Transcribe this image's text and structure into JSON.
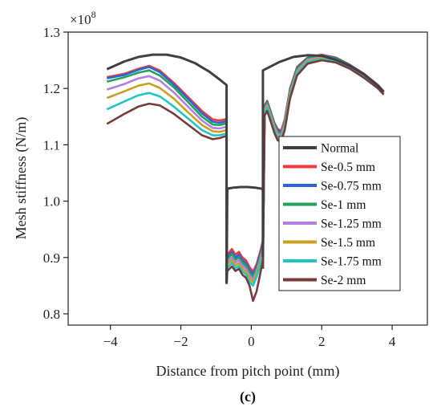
{
  "chart_data": {
    "type": "line",
    "xlabel": "Distance from  pitch point (mm)",
    "ylabel": "Mesh stiffness (N/m)",
    "y_multiplier": "×10",
    "y_multiplier_exp": "8",
    "panel_label": "(c)",
    "xlim": [
      -5.2,
      5.0
    ],
    "ylim": [
      0.78,
      1.3
    ],
    "xticks": [
      -4,
      -2,
      0,
      2,
      4
    ],
    "xtick_labels": [
      "−4",
      "−2",
      "0",
      "2",
      "4"
    ],
    "yticks": [
      0.8,
      0.9,
      1.0,
      1.1,
      1.2,
      1.3
    ],
    "ytick_labels": [
      "0.8",
      "0.9",
      "1.0",
      "1.1",
      "1.2",
      "1.3"
    ],
    "grid": false,
    "legend_position": "right-center",
    "legend": [
      "Normal",
      "Se-0.5 mm",
      "Se-0.75 mm",
      "Se-1 mm",
      "Se-1.25 mm",
      "Se-1.5 mm",
      "Se-1.75 mm",
      "Se-2 mm"
    ],
    "series": [
      {
        "name": "Normal",
        "color": "#404040",
        "segments": [
          {
            "x": [
              -4.1,
              -3.6,
              -3.2,
              -2.8,
              -2.4,
              -2.0,
              -1.6,
              -1.2,
              -0.9,
              -0.7,
              -0.7
            ],
            "y": [
              1.234,
              1.248,
              1.256,
              1.26,
              1.26,
              1.255,
              1.245,
              1.23,
              1.216,
              1.206,
              0.855
            ]
          },
          {
            "x": [
              -0.7,
              -0.68,
              -0.5,
              -0.3,
              -0.1,
              0.1,
              0.3,
              0.33,
              0.33
            ],
            "y": [
              0.855,
              1.022,
              1.024,
              1.025,
              1.025,
              1.024,
              1.022,
              1.02,
              0.9
            ]
          },
          {
            "x": [
              0.33,
              0.33,
              0.8,
              1.2,
              1.6,
              2.0,
              2.4,
              2.8,
              3.2,
              3.6,
              3.76
            ],
            "y": [
              0.9,
              1.232,
              1.247,
              1.256,
              1.259,
              1.258,
              1.251,
              1.24,
              1.225,
              1.205,
              1.194
            ]
          }
        ]
      },
      {
        "name": "Se-0.5 mm",
        "color": "#ee3a3a",
        "segments": [
          {
            "x": [
              -4.1,
              -3.6,
              -3.2,
              -2.9,
              -2.6,
              -2.2,
              -1.8,
              -1.4,
              -1.1,
              -0.9,
              -0.7,
              -0.7
            ],
            "y": [
              1.22,
              1.226,
              1.235,
              1.24,
              1.232,
              1.21,
              1.185,
              1.16,
              1.145,
              1.143,
              1.146,
              0.86
            ]
          },
          {
            "x": [
              -0.7,
              -0.68,
              -0.55,
              -0.45,
              -0.35,
              -0.25,
              -0.15,
              -0.05,
              0.05,
              0.15,
              0.25,
              0.33,
              0.33
            ],
            "y": [
              0.86,
              0.905,
              0.915,
              0.905,
              0.91,
              0.9,
              0.895,
              0.883,
              0.875,
              0.888,
              0.91,
              0.93,
              0.893
            ]
          },
          {
            "x": [
              0.33,
              0.38,
              0.45,
              0.55,
              0.65,
              0.75,
              0.85,
              0.95,
              1.1,
              1.3,
              1.6,
              2.0,
              2.4,
              2.8,
              3.2,
              3.6,
              3.76
            ],
            "y": [
              0.893,
              1.17,
              1.178,
              1.16,
              1.14,
              1.128,
              1.125,
              1.145,
              1.2,
              1.238,
              1.255,
              1.26,
              1.255,
              1.242,
              1.226,
              1.206,
              1.195
            ]
          }
        ]
      },
      {
        "name": "Se-0.75 mm",
        "color": "#2a64d8",
        "segments": [
          {
            "x": [
              -4.1,
              -3.6,
              -3.2,
              -2.9,
              -2.6,
              -2.2,
              -1.8,
              -1.4,
              -1.1,
              -0.9,
              -0.7,
              -0.7
            ],
            "y": [
              1.218,
              1.224,
              1.233,
              1.238,
              1.229,
              1.207,
              1.182,
              1.156,
              1.141,
              1.139,
              1.142,
              0.858
            ]
          },
          {
            "x": [
              -0.7,
              -0.68,
              -0.55,
              -0.45,
              -0.35,
              -0.25,
              -0.15,
              -0.05,
              0.05,
              0.15,
              0.25,
              0.33,
              0.33
            ],
            "y": [
              0.858,
              0.9,
              0.91,
              0.9,
              0.905,
              0.895,
              0.89,
              0.878,
              0.87,
              0.884,
              0.905,
              0.925,
              0.89
            ]
          },
          {
            "x": [
              0.33,
              0.38,
              0.45,
              0.55,
              0.65,
              0.75,
              0.85,
              0.95,
              1.1,
              1.3,
              1.6,
              2.0,
              2.4,
              2.8,
              3.2,
              3.6,
              3.76
            ],
            "y": [
              0.89,
              1.168,
              1.176,
              1.158,
              1.138,
              1.125,
              1.122,
              1.142,
              1.197,
              1.236,
              1.254,
              1.259,
              1.254,
              1.241,
              1.225,
              1.205,
              1.194
            ]
          }
        ]
      },
      {
        "name": "Se-1 mm",
        "color": "#22a25a",
        "segments": [
          {
            "x": [
              -4.1,
              -3.6,
              -3.2,
              -2.9,
              -2.6,
              -2.2,
              -1.8,
              -1.4,
              -1.1,
              -0.9,
              -0.7,
              -0.7
            ],
            "y": [
              1.212,
              1.22,
              1.228,
              1.232,
              1.223,
              1.202,
              1.176,
              1.15,
              1.136,
              1.135,
              1.138,
              0.857
            ]
          },
          {
            "x": [
              -0.7,
              -0.68,
              -0.55,
              -0.45,
              -0.35,
              -0.25,
              -0.15,
              -0.05,
              0.05,
              0.15,
              0.25,
              0.33,
              0.33
            ],
            "y": [
              0.857,
              0.897,
              0.906,
              0.896,
              0.9,
              0.89,
              0.885,
              0.873,
              0.866,
              0.88,
              0.9,
              0.92,
              0.888
            ]
          },
          {
            "x": [
              0.33,
              0.38,
              0.45,
              0.55,
              0.65,
              0.75,
              0.85,
              0.95,
              1.1,
              1.3,
              1.6,
              2.0,
              2.4,
              2.8,
              3.2,
              3.6,
              3.76
            ],
            "y": [
              0.888,
              1.166,
              1.174,
              1.156,
              1.136,
              1.122,
              1.12,
              1.14,
              1.195,
              1.234,
              1.253,
              1.258,
              1.253,
              1.24,
              1.224,
              1.204,
              1.193
            ]
          }
        ]
      },
      {
        "name": "Se-1.25 mm",
        "color": "#b57fe0",
        "segments": [
          {
            "x": [
              -4.1,
              -3.6,
              -3.2,
              -2.9,
              -2.6,
              -2.2,
              -1.8,
              -1.4,
              -1.1,
              -0.9,
              -0.7,
              -0.7
            ],
            "y": [
              1.198,
              1.208,
              1.218,
              1.222,
              1.214,
              1.193,
              1.168,
              1.143,
              1.13,
              1.129,
              1.132,
              0.856
            ]
          },
          {
            "x": [
              -0.7,
              -0.68,
              -0.55,
              -0.45,
              -0.35,
              -0.25,
              -0.15,
              -0.05,
              0.05,
              0.15,
              0.25,
              0.33,
              0.33
            ],
            "y": [
              0.856,
              0.892,
              0.9,
              0.891,
              0.895,
              0.885,
              0.88,
              0.868,
              0.861,
              0.875,
              0.895,
              0.915,
              0.886
            ]
          },
          {
            "x": [
              0.33,
              0.38,
              0.45,
              0.55,
              0.65,
              0.75,
              0.85,
              0.95,
              1.1,
              1.3,
              1.6,
              2.0,
              2.4,
              2.8,
              3.2,
              3.6,
              3.76
            ],
            "y": [
              0.886,
              1.163,
              1.171,
              1.153,
              1.133,
              1.119,
              1.117,
              1.137,
              1.192,
              1.231,
              1.251,
              1.256,
              1.251,
              1.239,
              1.223,
              1.203,
              1.192
            ]
          }
        ]
      },
      {
        "name": "Se-1.5 mm",
        "color": "#c9a020",
        "segments": [
          {
            "x": [
              -4.1,
              -3.6,
              -3.2,
              -2.9,
              -2.6,
              -2.2,
              -1.8,
              -1.4,
              -1.1,
              -0.9,
              -0.7,
              -0.7
            ],
            "y": [
              1.183,
              1.195,
              1.205,
              1.209,
              1.201,
              1.182,
              1.158,
              1.135,
              1.124,
              1.123,
              1.126,
              0.855
            ]
          },
          {
            "x": [
              -0.7,
              -0.68,
              -0.55,
              -0.45,
              -0.35,
              -0.25,
              -0.15,
              -0.05,
              0.05,
              0.15,
              0.25,
              0.33,
              0.33
            ],
            "y": [
              0.855,
              0.888,
              0.895,
              0.886,
              0.89,
              0.88,
              0.875,
              0.863,
              0.856,
              0.87,
              0.89,
              0.91,
              0.884
            ]
          },
          {
            "x": [
              0.33,
              0.38,
              0.45,
              0.55,
              0.65,
              0.75,
              0.85,
              0.95,
              1.1,
              1.3,
              1.6,
              2.0,
              2.4,
              2.8,
              3.2,
              3.6,
              3.76
            ],
            "y": [
              0.884,
              1.16,
              1.168,
              1.15,
              1.13,
              1.116,
              1.114,
              1.134,
              1.19,
              1.229,
              1.249,
              1.254,
              1.25,
              1.238,
              1.222,
              1.202,
              1.191
            ]
          }
        ]
      },
      {
        "name": "Se-1.75 mm",
        "color": "#1ec6c6",
        "segments": [
          {
            "x": [
              -4.1,
              -3.6,
              -3.2,
              -2.9,
              -2.6,
              -2.2,
              -1.8,
              -1.4,
              -1.1,
              -0.9,
              -0.7,
              -0.7
            ],
            "y": [
              1.163,
              1.177,
              1.188,
              1.192,
              1.186,
              1.168,
              1.147,
              1.126,
              1.117,
              1.117,
              1.12,
              0.854
            ]
          },
          {
            "x": [
              -0.7,
              -0.68,
              -0.55,
              -0.45,
              -0.35,
              -0.25,
              -0.15,
              -0.05,
              0.05,
              0.15,
              0.25,
              0.33,
              0.33
            ],
            "y": [
              0.854,
              0.882,
              0.89,
              0.881,
              0.885,
              0.875,
              0.87,
              0.857,
              0.85,
              0.865,
              0.885,
              0.905,
              0.882
            ]
          },
          {
            "x": [
              0.33,
              0.38,
              0.45,
              0.55,
              0.65,
              0.75,
              0.85,
              0.95,
              1.1,
              1.3,
              1.6,
              2.0,
              2.4,
              2.8,
              3.2,
              3.6,
              3.76
            ],
            "y": [
              0.882,
              1.157,
              1.165,
              1.147,
              1.127,
              1.113,
              1.111,
              1.131,
              1.187,
              1.227,
              1.247,
              1.252,
              1.248,
              1.237,
              1.221,
              1.201,
              1.19
            ]
          }
        ]
      },
      {
        "name": "Se-2 mm",
        "color": "#7a3a3a",
        "segments": [
          {
            "x": [
              -4.1,
              -3.6,
              -3.2,
              -2.9,
              -2.6,
              -2.2,
              -1.8,
              -1.4,
              -1.1,
              -0.9,
              -0.7,
              -0.7
            ],
            "y": [
              1.137,
              1.155,
              1.168,
              1.173,
              1.17,
              1.155,
              1.136,
              1.117,
              1.11,
              1.112,
              1.116,
              0.853
            ]
          },
          {
            "x": [
              -0.7,
              -0.68,
              -0.55,
              -0.45,
              -0.35,
              -0.25,
              -0.15,
              -0.05,
              0.05,
              0.15,
              0.25,
              0.33,
              0.33
            ],
            "y": [
              0.853,
              0.876,
              0.884,
              0.876,
              0.88,
              0.869,
              0.864,
              0.85,
              0.823,
              0.84,
              0.87,
              0.895,
              0.88
            ]
          },
          {
            "x": [
              0.33,
              0.38,
              0.45,
              0.55,
              0.65,
              0.75,
              0.85,
              0.95,
              1.1,
              1.3,
              1.6,
              2.0,
              2.4,
              2.8,
              3.2,
              3.6,
              3.76
            ],
            "y": [
              0.88,
              1.152,
              1.16,
              1.142,
              1.122,
              1.108,
              1.106,
              1.126,
              1.182,
              1.223,
              1.244,
              1.25,
              1.246,
              1.235,
              1.219,
              1.2,
              1.189
            ]
          }
        ]
      }
    ]
  }
}
